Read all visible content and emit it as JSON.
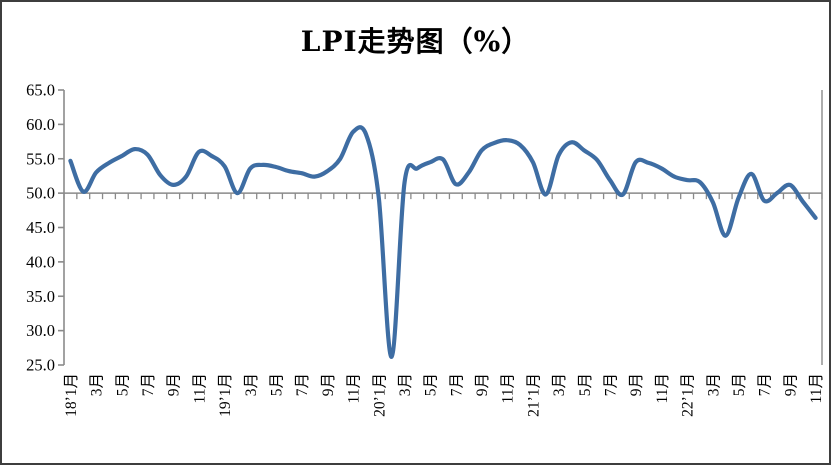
{
  "chart_data": {
    "type": "line",
    "title": "LPI走势图（%）",
    "series_name": "LPI",
    "x_start": "2018-01",
    "x_end": "2022-11",
    "x_tick_labels": [
      "18’1月",
      "3月",
      "5月",
      "7月",
      "9月",
      "11月",
      "19’1月",
      "3月",
      "5月",
      "7月",
      "9月",
      "11月",
      "20’1月",
      "3月",
      "5月",
      "7月",
      "9月",
      "11月",
      "21’1月",
      "3月",
      "5月",
      "7月",
      "9月",
      "11月",
      "22’1月",
      "3月",
      "5月",
      "7月",
      "9月",
      "11月"
    ],
    "values": [
      54.7,
      50.2,
      53.0,
      54.4,
      55.4,
      56.4,
      55.6,
      52.6,
      51.2,
      52.4,
      56.0,
      55.4,
      53.9,
      50.0,
      53.6,
      54.1,
      53.8,
      53.2,
      52.9,
      52.4,
      53.2,
      55.0,
      58.9,
      58.6,
      49.3,
      26.2,
      51.5,
      53.6,
      54.5,
      54.9,
      51.3,
      53.0,
      56.2,
      57.3,
      57.7,
      57.0,
      54.5,
      49.8,
      55.5,
      57.4,
      56.2,
      54.8,
      51.9,
      49.8,
      54.5,
      54.4,
      53.6,
      52.4,
      51.9,
      51.6,
      48.7,
      43.8,
      49.3,
      52.8,
      48.9,
      50.0,
      51.2,
      48.8,
      46.4
    ],
    "ylim": [
      25,
      65
    ],
    "ytick_step": 5,
    "ytick_labels": [
      "65.0",
      "60.0",
      "55.0",
      "50.0",
      "45.0",
      "40.0",
      "35.0",
      "30.0",
      "25.0"
    ],
    "category_axis_crosses_at": 50,
    "x_label_every_n_months": 2,
    "gridlines": "none",
    "legend": "none",
    "line_smoothing": true,
    "colors": {
      "line": "#3E6DA3",
      "axis": "#8a8a8a",
      "text": "#000000",
      "background": "#FFFFFF",
      "frame_border": "#3e3e3e"
    }
  }
}
